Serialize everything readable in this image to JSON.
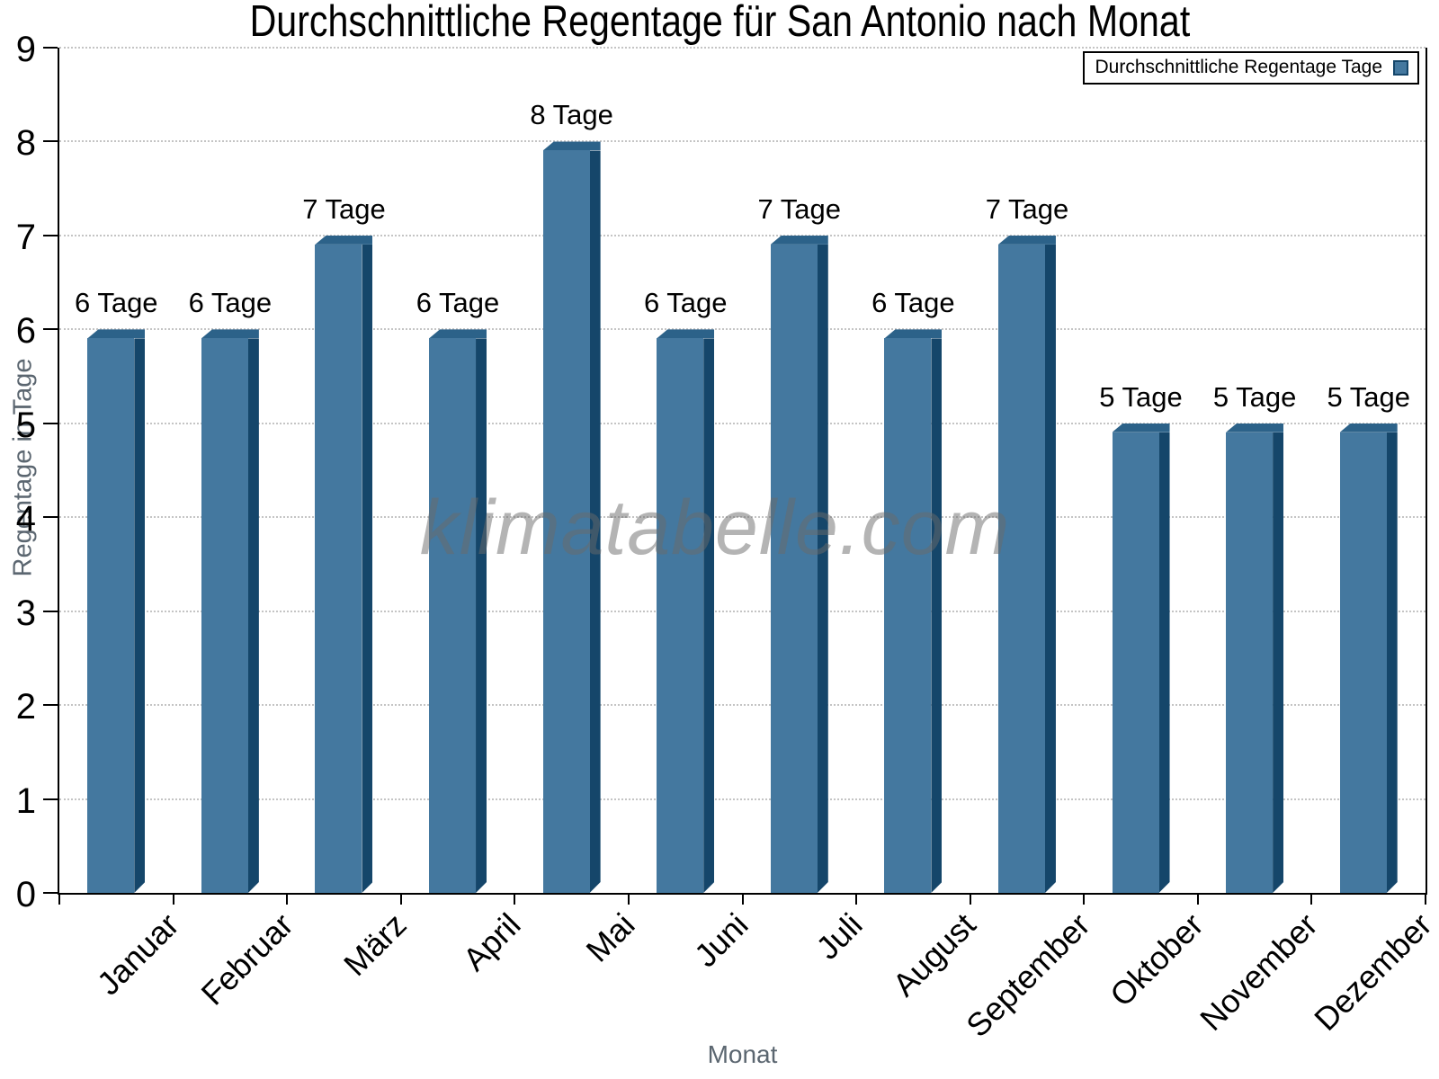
{
  "chart_data": {
    "type": "bar",
    "title": "Durchschnittliche Regentage für San Antonio nach Monat",
    "xlabel": "Monat",
    "ylabel": "Regentage in Tage",
    "categories": [
      "Januar",
      "Februar",
      "März",
      "April",
      "Mai",
      "Juni",
      "Juli",
      "August",
      "September",
      "Oktober",
      "November",
      "Dezember"
    ],
    "values": [
      6,
      6,
      7,
      6,
      8,
      6,
      7,
      6,
      7,
      5,
      5,
      5
    ],
    "bar_labels": [
      "6 Tage",
      "6 Tage",
      "7 Tage",
      "6 Tage",
      "8 Tage",
      "6 Tage",
      "7 Tage",
      "6 Tage",
      "7 Tage",
      "5 Tage",
      "5 Tage",
      "5 Tage"
    ],
    "ylim": [
      0,
      9
    ],
    "ytick_labels": [
      "0",
      "1",
      "2",
      "3",
      "4",
      "5",
      "6",
      "7",
      "8",
      "9"
    ],
    "grid": "horizontal-dotted",
    "legend": {
      "label": "Durchschnittliche Regentage Tage",
      "position": "top-right"
    },
    "watermark": "klimatabelle.com",
    "colors": {
      "bar_face": "#44789f",
      "bar_side": "#15466a",
      "bar_bevel": "#2c6289",
      "grid": "#c4c4c4",
      "axis": "#000000",
      "axis_title": "#5b6670",
      "watermark_gray": "#696969"
    }
  }
}
